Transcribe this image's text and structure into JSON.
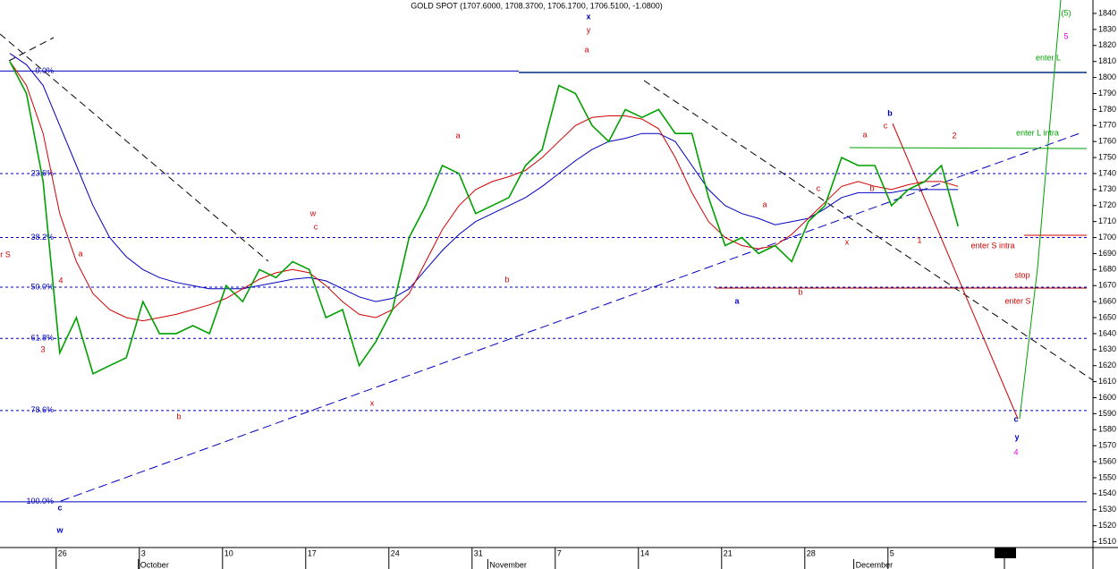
{
  "chart_data": {
    "type": "line",
    "title": "GOLD SPOT (1707.6000, 1708.3700, 1706.1700, 1706.5100, -1.0800)",
    "categories": [
      null,
      null,
      null,
      "26",
      null,
      null,
      null,
      null,
      "3",
      null,
      null,
      null,
      null,
      "10",
      null,
      null,
      null,
      null,
      "17",
      null,
      null,
      null,
      null,
      "24",
      null,
      null,
      null,
      null,
      "31",
      null,
      null,
      null,
      null,
      "7",
      null,
      null,
      null,
      null,
      "14",
      null,
      null,
      null,
      null,
      "21",
      null,
      null,
      null,
      null,
      "28",
      null,
      null,
      null,
      null,
      "5",
      null,
      null,
      null,
      null,
      null,
      null,
      "1",
      null,
      null,
      null,
      null,
      null
    ],
    "months": [
      "October",
      "November",
      "December"
    ],
    "series": [
      {
        "color": "#00a000",
        "values": [
          1810,
          1790,
          1735,
          1628,
          1650,
          1615,
          1620,
          1625,
          1660,
          1640,
          1640,
          1645,
          1640,
          1670,
          1660,
          1680,
          1675,
          1685,
          1680,
          1650,
          1655,
          1620,
          1635,
          1655,
          1700,
          1720,
          1745,
          1740,
          1715,
          1720,
          1725,
          1745,
          1755,
          1795,
          1790,
          1770,
          1760,
          1780,
          1775,
          1780,
          1765,
          1765,
          1725,
          1695,
          1700,
          1690,
          1695,
          1685,
          1710,
          1720,
          1750,
          1745,
          1745,
          1720,
          1730,
          1735,
          1745,
          1707,
          null,
          null,
          null,
          null,
          null,
          null,
          null,
          null
        ]
      },
      {
        "color": "#d00000",
        "values": [
          1810,
          1795,
          1765,
          1715,
          1685,
          1665,
          1655,
          1650,
          1648,
          1650,
          1652,
          1655,
          1658,
          1662,
          1668,
          1674,
          1678,
          1680,
          1678,
          1670,
          1660,
          1652,
          1650,
          1655,
          1665,
          1685,
          1705,
          1720,
          1730,
          1735,
          1738,
          1742,
          1750,
          1760,
          1770,
          1775,
          1776,
          1776,
          1774,
          1768,
          1750,
          1728,
          1710,
          1700,
          1695,
          1693,
          1695,
          1702,
          1712,
          1722,
          1732,
          1735,
          1732,
          1730,
          1733,
          1735,
          1735,
          1732,
          null,
          null,
          null,
          null,
          null,
          null,
          null,
          null
        ]
      },
      {
        "color": "#0000c0",
        "values": [
          1815,
          1808,
          1795,
          1770,
          1745,
          1720,
          1700,
          1688,
          1680,
          1675,
          1672,
          1670,
          1668,
          1668,
          1668,
          1670,
          1672,
          1674,
          1675,
          1673,
          1668,
          1663,
          1660,
          1662,
          1668,
          1680,
          1692,
          1702,
          1710,
          1715,
          1720,
          1725,
          1732,
          1740,
          1748,
          1755,
          1760,
          1762,
          1765,
          1765,
          1760,
          1745,
          1730,
          1720,
          1715,
          1712,
          1708,
          1710,
          1712,
          1718,
          1725,
          1728,
          1728,
          1728,
          1730,
          1730,
          1730,
          1730,
          null,
          null,
          null,
          null,
          null,
          null,
          null,
          null
        ]
      }
    ],
    "fib_levels": [
      {
        "label": "0.0%",
        "value": 1804
      },
      {
        "label": "23.6%",
        "value": 1740
      },
      {
        "label": "38.2%",
        "value": 1700
      },
      {
        "label": "50.0%",
        "value": 1669
      },
      {
        "label": "61.8%",
        "value": 1637
      },
      {
        "label": "78.6%",
        "value": 1592
      },
      {
        "label": "100.0%",
        "value": 1535
      }
    ],
    "fib_color": "#0000c0",
    "annotations": [
      {
        "text": "x",
        "color": "#0000c0"
      },
      {
        "text": "y",
        "color": "#d00000"
      },
      {
        "text": "a",
        "color": "#d00000"
      },
      {
        "text": "a",
        "color": "#d00000"
      },
      {
        "text": "w",
        "color": "#d00000"
      },
      {
        "text": "c",
        "color": "#d00000"
      },
      {
        "text": "r S",
        "color": "#d00000"
      },
      {
        "text": "a",
        "color": "#d00000"
      },
      {
        "text": "4",
        "color": "#d00000"
      },
      {
        "text": "3",
        "color": "#d00000"
      },
      {
        "text": "b",
        "color": "#d00000"
      },
      {
        "text": "b",
        "color": "#d00000"
      },
      {
        "text": "x",
        "color": "#d00000"
      },
      {
        "text": "c",
        "color": "#0000c0"
      },
      {
        "text": "w",
        "color": "#0000c0"
      },
      {
        "text": "a",
        "color": "#0000c0"
      },
      {
        "text": "b",
        "color": "#d00000"
      },
      {
        "text": "c",
        "color": "#d00000"
      },
      {
        "text": "a",
        "color": "#d00000"
      },
      {
        "text": "x",
        "color": "#d00000"
      },
      {
        "text": "b",
        "color": "#d00000"
      },
      {
        "text": "a",
        "color": "#d00000"
      },
      {
        "text": "c",
        "color": "#d00000"
      },
      {
        "text": "b",
        "color": "#0000c0"
      },
      {
        "text": "1",
        "color": "#d00000"
      },
      {
        "text": "2",
        "color": "#d00000"
      },
      {
        "text": "enter S intra",
        "color": "#d00000"
      },
      {
        "text": "stop",
        "color": "#d00000"
      },
      {
        "text": "enter S",
        "color": "#d00000"
      },
      {
        "text": "c",
        "color": "#0000c0"
      },
      {
        "text": "y",
        "color": "#0000c0"
      },
      {
        "text": "4",
        "color": "#e000e0"
      },
      {
        "text": "5",
        "color": "#e000e0"
      },
      {
        "text": "(5)",
        "color": "#00a000"
      },
      {
        "text": "enter L",
        "color": "#00a000"
      },
      {
        "text": "enter L intra",
        "color": "#00a000"
      }
    ],
    "ylim": [
      1506.4,
      1842.8
    ],
    "yticks": [
      1510,
      1520,
      1530,
      1540,
      1550,
      1560,
      1570,
      1580,
      1590,
      1600,
      1610,
      1620,
      1630,
      1640,
      1650,
      1660,
      1670,
      1680,
      1690,
      1700,
      1710,
      1720,
      1730,
      1740,
      1750,
      1760,
      1770,
      1780,
      1790,
      1800,
      1810,
      1820,
      1830,
      1840
    ]
  }
}
